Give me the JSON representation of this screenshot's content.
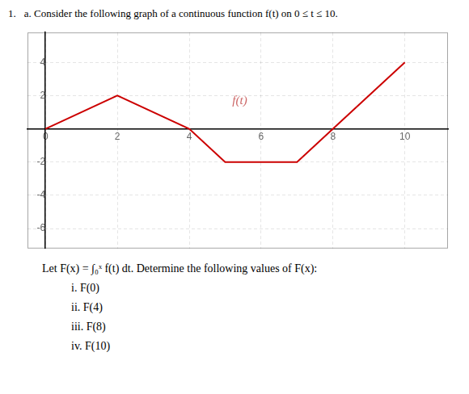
{
  "chart_data": {
    "type": "line",
    "title": "1.",
    "subtitle": "a. Consider the following graph of a continuous function f(t) on 0 ≤ t ≤ 10.",
    "x": [
      0,
      2,
      4,
      5,
      7,
      8,
      10
    ],
    "series": [
      {
        "values": [
          0,
          2,
          0,
          -2,
          -2,
          0,
          4
        ],
        "color": "#cc0000"
      }
    ],
    "xlim": [
      -0.5,
      11.2
    ],
    "ylim": [
      -7.2,
      5.8
    ],
    "xticks": [
      0,
      2,
      4,
      6,
      8,
      10
    ],
    "yticks": [
      -6,
      -4,
      -2,
      2,
      4
    ],
    "grid": true,
    "annotations": [
      {
        "text": "f(t)",
        "x": 5.2,
        "y": 1.5,
        "color": "#cc6666"
      }
    ],
    "caption": [
      "Let F(x) = ∫₀ˣ f(t) dt. Determine the following values of F(x):",
      "i. F(0)",
      "ii. F(4)",
      "iii. F(8)",
      "iv. F(10)"
    ]
  }
}
